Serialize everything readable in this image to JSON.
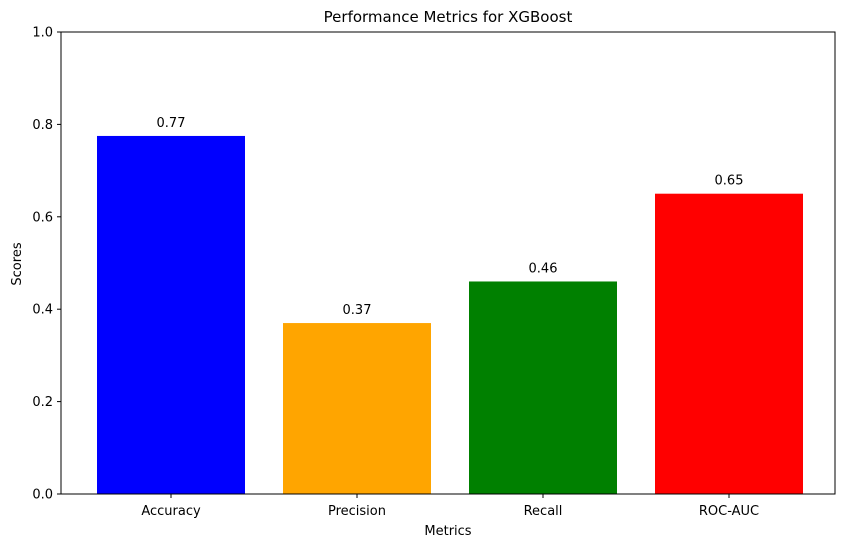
{
  "chart_data": {
    "type": "bar",
    "title": "Performance Metrics for XGBoost",
    "xlabel": "Metrics",
    "ylabel": "Scores",
    "categories": [
      "Accuracy",
      "Precision",
      "Recall",
      "ROC-AUC"
    ],
    "values": [
      0.775,
      0.37,
      0.46,
      0.65
    ],
    "value_labels": [
      "0.77",
      "0.37",
      "0.46",
      "0.65"
    ],
    "colors": [
      "#0000ff",
      "#ffa500",
      "#008000",
      "#ff0000"
    ],
    "ylim": [
      0,
      1
    ],
    "yticks": [
      0.0,
      0.2,
      0.4,
      0.6,
      0.8,
      1.0
    ],
    "ytick_labels": [
      "0.0",
      "0.2",
      "0.4",
      "0.6",
      "0.8",
      "1.0"
    ],
    "grid": false,
    "legend": false
  }
}
